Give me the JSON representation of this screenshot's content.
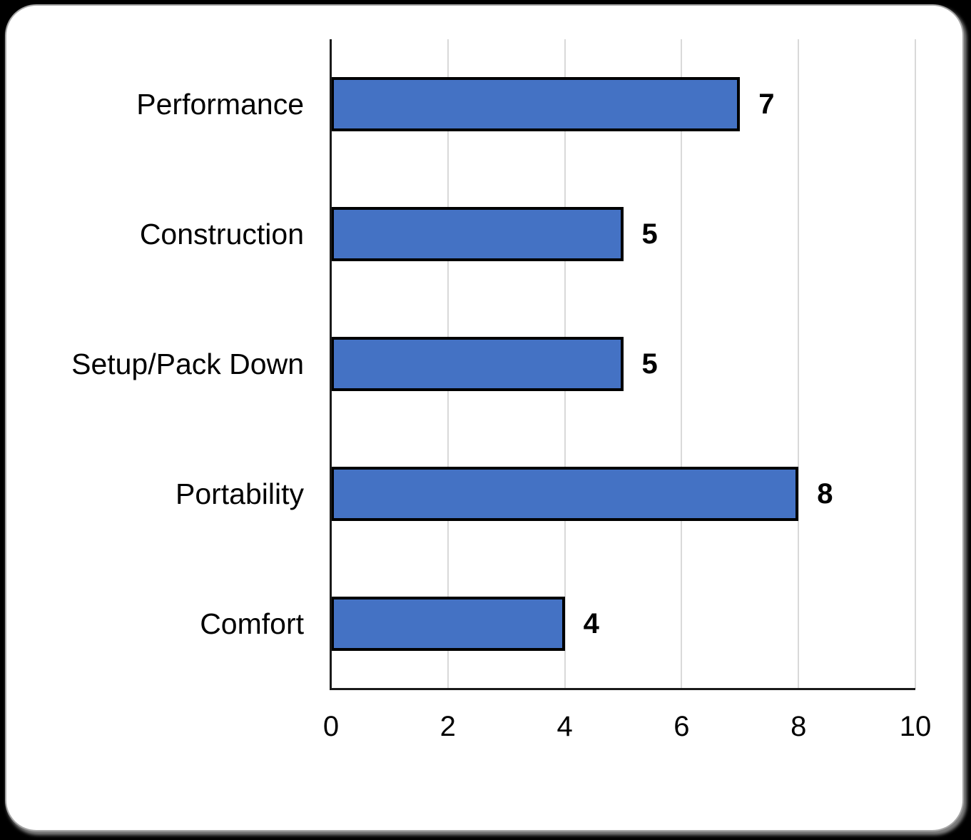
{
  "chart_data": {
    "type": "bar",
    "orientation": "horizontal",
    "title": "",
    "xlabel": "",
    "ylabel": "",
    "categories": [
      "Performance",
      "Construction",
      "Setup/Pack Down",
      "Portability",
      "Comfort"
    ],
    "values": [
      7,
      5,
      5,
      8,
      4
    ],
    "data_labels": [
      "7",
      "5",
      "5",
      "8",
      "4"
    ],
    "xlim": [
      0,
      10
    ],
    "x_ticks": [
      0,
      2,
      4,
      6,
      8,
      10
    ],
    "grid": "vertical gridlines at each x tick",
    "legend": "none",
    "colors": {
      "bar_fill": "#4472C4",
      "bar_border": "#000000",
      "gridline": "#D9D9D9",
      "axis_line": "#1A1A1A",
      "label_text": "#000000",
      "card_background": "#FFFFFF",
      "card_border": "#A6A6A6"
    }
  }
}
